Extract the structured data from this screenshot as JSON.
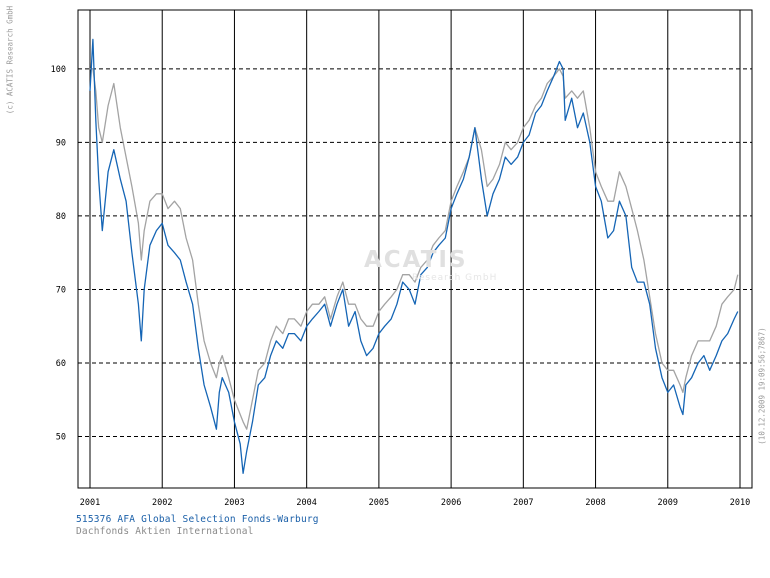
{
  "copyright": "(c) ACATIS Research GmbH",
  "stamp": "(10.12.2009 19:09:56;7867)",
  "watermark": {
    "brand": "ACATIS",
    "sub": "Research GmbH"
  },
  "legend": {
    "fund": "515376 AFA Global Selection Fonds-Warburg",
    "benchmark": "Dachfonds Aktien International"
  },
  "colors": {
    "fund": "#1565b5",
    "benchmark": "#a3a3a3",
    "grid": "#000000"
  },
  "chart_data": {
    "type": "line",
    "title": "",
    "xlabel": "",
    "ylabel": "",
    "xlim": [
      2001.0,
      2010.0
    ],
    "ylim": [
      43,
      108
    ],
    "y_ticks": [
      50,
      60,
      70,
      80,
      90,
      100
    ],
    "x_ticks": [
      "2001",
      "2002",
      "2003",
      "2004",
      "2005",
      "2006",
      "2007",
      "2008",
      "2009",
      "2010"
    ],
    "grid": "horizontal dashed, vertical solid",
    "series": [
      {
        "name": "515376 AFA Global Selection Fonds-Warburg",
        "x": [
          2001.0,
          2001.04,
          2001.08,
          2001.12,
          2001.17,
          2001.25,
          2001.33,
          2001.42,
          2001.5,
          2001.58,
          2001.67,
          2001.71,
          2001.75,
          2001.83,
          2001.92,
          2002.0,
          2002.08,
          2002.17,
          2002.25,
          2002.33,
          2002.42,
          2002.5,
          2002.58,
          2002.67,
          2002.75,
          2002.79,
          2002.83,
          2002.92,
          2003.0,
          2003.08,
          2003.12,
          2003.17,
          2003.21,
          2003.25,
          2003.33,
          2003.42,
          2003.5,
          2003.58,
          2003.67,
          2003.75,
          2003.83,
          2003.92,
          2004.0,
          2004.08,
          2004.17,
          2004.25,
          2004.33,
          2004.42,
          2004.5,
          2004.58,
          2004.67,
          2004.75,
          2004.83,
          2004.92,
          2005.0,
          2005.08,
          2005.17,
          2005.25,
          2005.33,
          2005.42,
          2005.5,
          2005.58,
          2005.67,
          2005.75,
          2005.83,
          2005.92,
          2006.0,
          2006.08,
          2006.17,
          2006.25,
          2006.33,
          2006.42,
          2006.5,
          2006.58,
          2006.67,
          2006.75,
          2006.83,
          2006.92,
          2007.0,
          2007.08,
          2007.17,
          2007.25,
          2007.33,
          2007.42,
          2007.5,
          2007.55,
          2007.58,
          2007.67,
          2007.75,
          2007.83,
          2007.92,
          2008.0,
          2008.08,
          2008.17,
          2008.25,
          2008.33,
          2008.42,
          2008.5,
          2008.58,
          2008.67,
          2008.75,
          2008.83,
          2008.92,
          2009.0,
          2009.08,
          2009.17,
          2009.21,
          2009.25,
          2009.33,
          2009.42,
          2009.5,
          2009.58,
          2009.67,
          2009.75,
          2009.83,
          2009.92,
          2009.97
        ],
        "y": [
          97,
          104,
          93,
          85,
          78,
          86,
          89,
          85,
          82,
          75,
          68,
          63,
          70,
          76,
          78,
          79,
          76,
          75,
          74,
          71,
          68,
          62,
          57,
          54,
          51,
          56,
          58,
          56,
          52,
          49,
          45,
          48,
          50,
          52,
          57,
          58,
          61,
          63,
          62,
          64,
          64,
          63,
          65,
          66,
          67,
          68,
          65,
          68,
          70,
          65,
          67,
          63,
          61,
          62,
          64,
          65,
          66,
          68,
          71,
          70,
          68,
          72,
          73,
          75,
          76,
          77,
          81,
          83,
          85,
          88,
          92,
          85,
          80,
          83,
          85,
          88,
          87,
          88,
          90,
          91,
          94,
          95,
          97,
          99,
          101,
          100,
          93,
          96,
          92,
          94,
          90,
          84,
          82,
          77,
          78,
          82,
          80,
          73,
          71,
          71,
          68,
          62,
          58,
          56,
          57,
          54,
          53,
          57,
          58,
          60,
          61,
          59,
          61,
          63,
          64,
          66,
          67
        ]
      },
      {
        "name": "Dachfonds Aktien International",
        "x": [
          2001.0,
          2001.04,
          2001.08,
          2001.12,
          2001.17,
          2001.25,
          2001.33,
          2001.42,
          2001.5,
          2001.58,
          2001.67,
          2001.71,
          2001.75,
          2001.83,
          2001.92,
          2002.0,
          2002.08,
          2002.17,
          2002.25,
          2002.33,
          2002.42,
          2002.5,
          2002.58,
          2002.67,
          2002.75,
          2002.79,
          2002.83,
          2002.92,
          2003.0,
          2003.08,
          2003.12,
          2003.17,
          2003.21,
          2003.25,
          2003.33,
          2003.42,
          2003.5,
          2003.58,
          2003.67,
          2003.75,
          2003.83,
          2003.92,
          2004.0,
          2004.08,
          2004.17,
          2004.25,
          2004.33,
          2004.42,
          2004.5,
          2004.58,
          2004.67,
          2004.75,
          2004.83,
          2004.92,
          2005.0,
          2005.08,
          2005.17,
          2005.25,
          2005.33,
          2005.42,
          2005.5,
          2005.58,
          2005.67,
          2005.75,
          2005.83,
          2005.92,
          2006.0,
          2006.08,
          2006.17,
          2006.25,
          2006.33,
          2006.42,
          2006.5,
          2006.58,
          2006.67,
          2006.75,
          2006.83,
          2006.92,
          2007.0,
          2007.08,
          2007.17,
          2007.25,
          2007.33,
          2007.42,
          2007.5,
          2007.55,
          2007.58,
          2007.67,
          2007.75,
          2007.83,
          2007.92,
          2008.0,
          2008.08,
          2008.17,
          2008.25,
          2008.33,
          2008.42,
          2008.5,
          2008.58,
          2008.67,
          2008.75,
          2008.83,
          2008.92,
          2009.0,
          2009.08,
          2009.17,
          2009.21,
          2009.25,
          2009.33,
          2009.42,
          2009.5,
          2009.58,
          2009.67,
          2009.75,
          2009.83,
          2009.92,
          2009.97
        ],
        "y": [
          100,
          100,
          97,
          92,
          90,
          95,
          98,
          92,
          88,
          84,
          79,
          74,
          78,
          82,
          83,
          83,
          81,
          82,
          81,
          77,
          74,
          68,
          63,
          60,
          58,
          60,
          61,
          58,
          55,
          53,
          52,
          51,
          53,
          55,
          59,
          60,
          63,
          65,
          64,
          66,
          66,
          65,
          67,
          68,
          68,
          69,
          66,
          69,
          71,
          68,
          68,
          66,
          65,
          65,
          67,
          68,
          69,
          70,
          72,
          72,
          71,
          73,
          74,
          76,
          77,
          78,
          82,
          84,
          86,
          88,
          92,
          89,
          84,
          85,
          87,
          90,
          89,
          90,
          92,
          93,
          95,
          96,
          98,
          99,
          100,
          99,
          96,
          97,
          96,
          97,
          92,
          86,
          84,
          82,
          82,
          86,
          84,
          81,
          78,
          74,
          69,
          64,
          60,
          59,
          59,
          57,
          56,
          58,
          61,
          63,
          63,
          63,
          65,
          68,
          69,
          70,
          72
        ]
      }
    ]
  }
}
